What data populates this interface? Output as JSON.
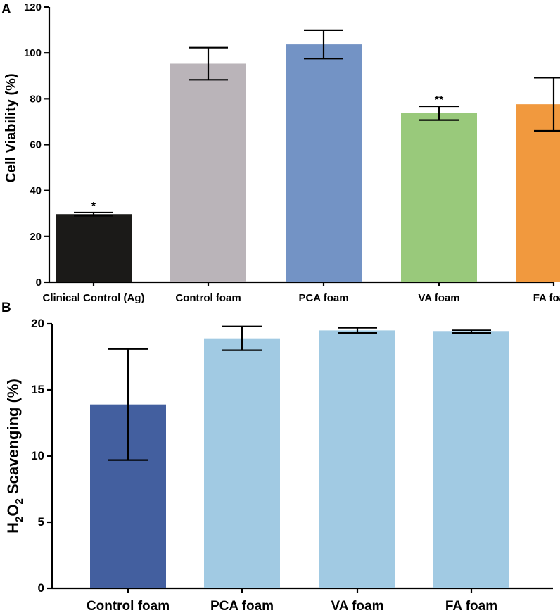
{
  "chart_data": [
    {
      "panel": "A",
      "type": "bar",
      "title": "",
      "xlabel": "",
      "ylabel": "Cell Viability (%)",
      "ylim": [
        0,
        120
      ],
      "yticks": [
        0,
        20,
        40,
        60,
        80,
        100,
        120
      ],
      "categories": [
        "Clinical Control (Ag)",
        "Control foam",
        "PCA foam",
        "VA foam",
        "FA foam"
      ],
      "values": [
        29.7,
        95.3,
        103.7,
        73.7,
        77.6
      ],
      "errors": [
        0.7,
        7.0,
        6.2,
        3.0,
        11.6
      ],
      "colors": [
        "#1b1a18",
        "#bab4b9",
        "#7393c5",
        "#99c97b",
        "#f1993e"
      ],
      "annotations": [
        "*",
        "",
        "",
        "**",
        ""
      ],
      "grid": false
    },
    {
      "panel": "B",
      "type": "bar",
      "title": "",
      "xlabel": "",
      "ylabel": "H2O2 Scavenging (%)",
      "ylabel_parts": {
        "h": "H",
        "sub1": "2",
        "o": "O",
        "sub2": "2",
        "rest": " Scavenging (%)"
      },
      "ylim": [
        0,
        20
      ],
      "yticks": [
        0,
        5,
        10,
        15,
        20
      ],
      "categories": [
        "Control foam",
        "PCA foam",
        "VA foam",
        "FA foam"
      ],
      "values": [
        13.9,
        18.9,
        19.5,
        19.4
      ],
      "errors": [
        4.2,
        0.9,
        0.2,
        0.1
      ],
      "colors": [
        "#435f9f",
        "#a1cae3",
        "#a1cae3",
        "#a1cae3"
      ],
      "annotations": [
        "",
        "",
        "",
        ""
      ],
      "grid": false
    }
  ]
}
